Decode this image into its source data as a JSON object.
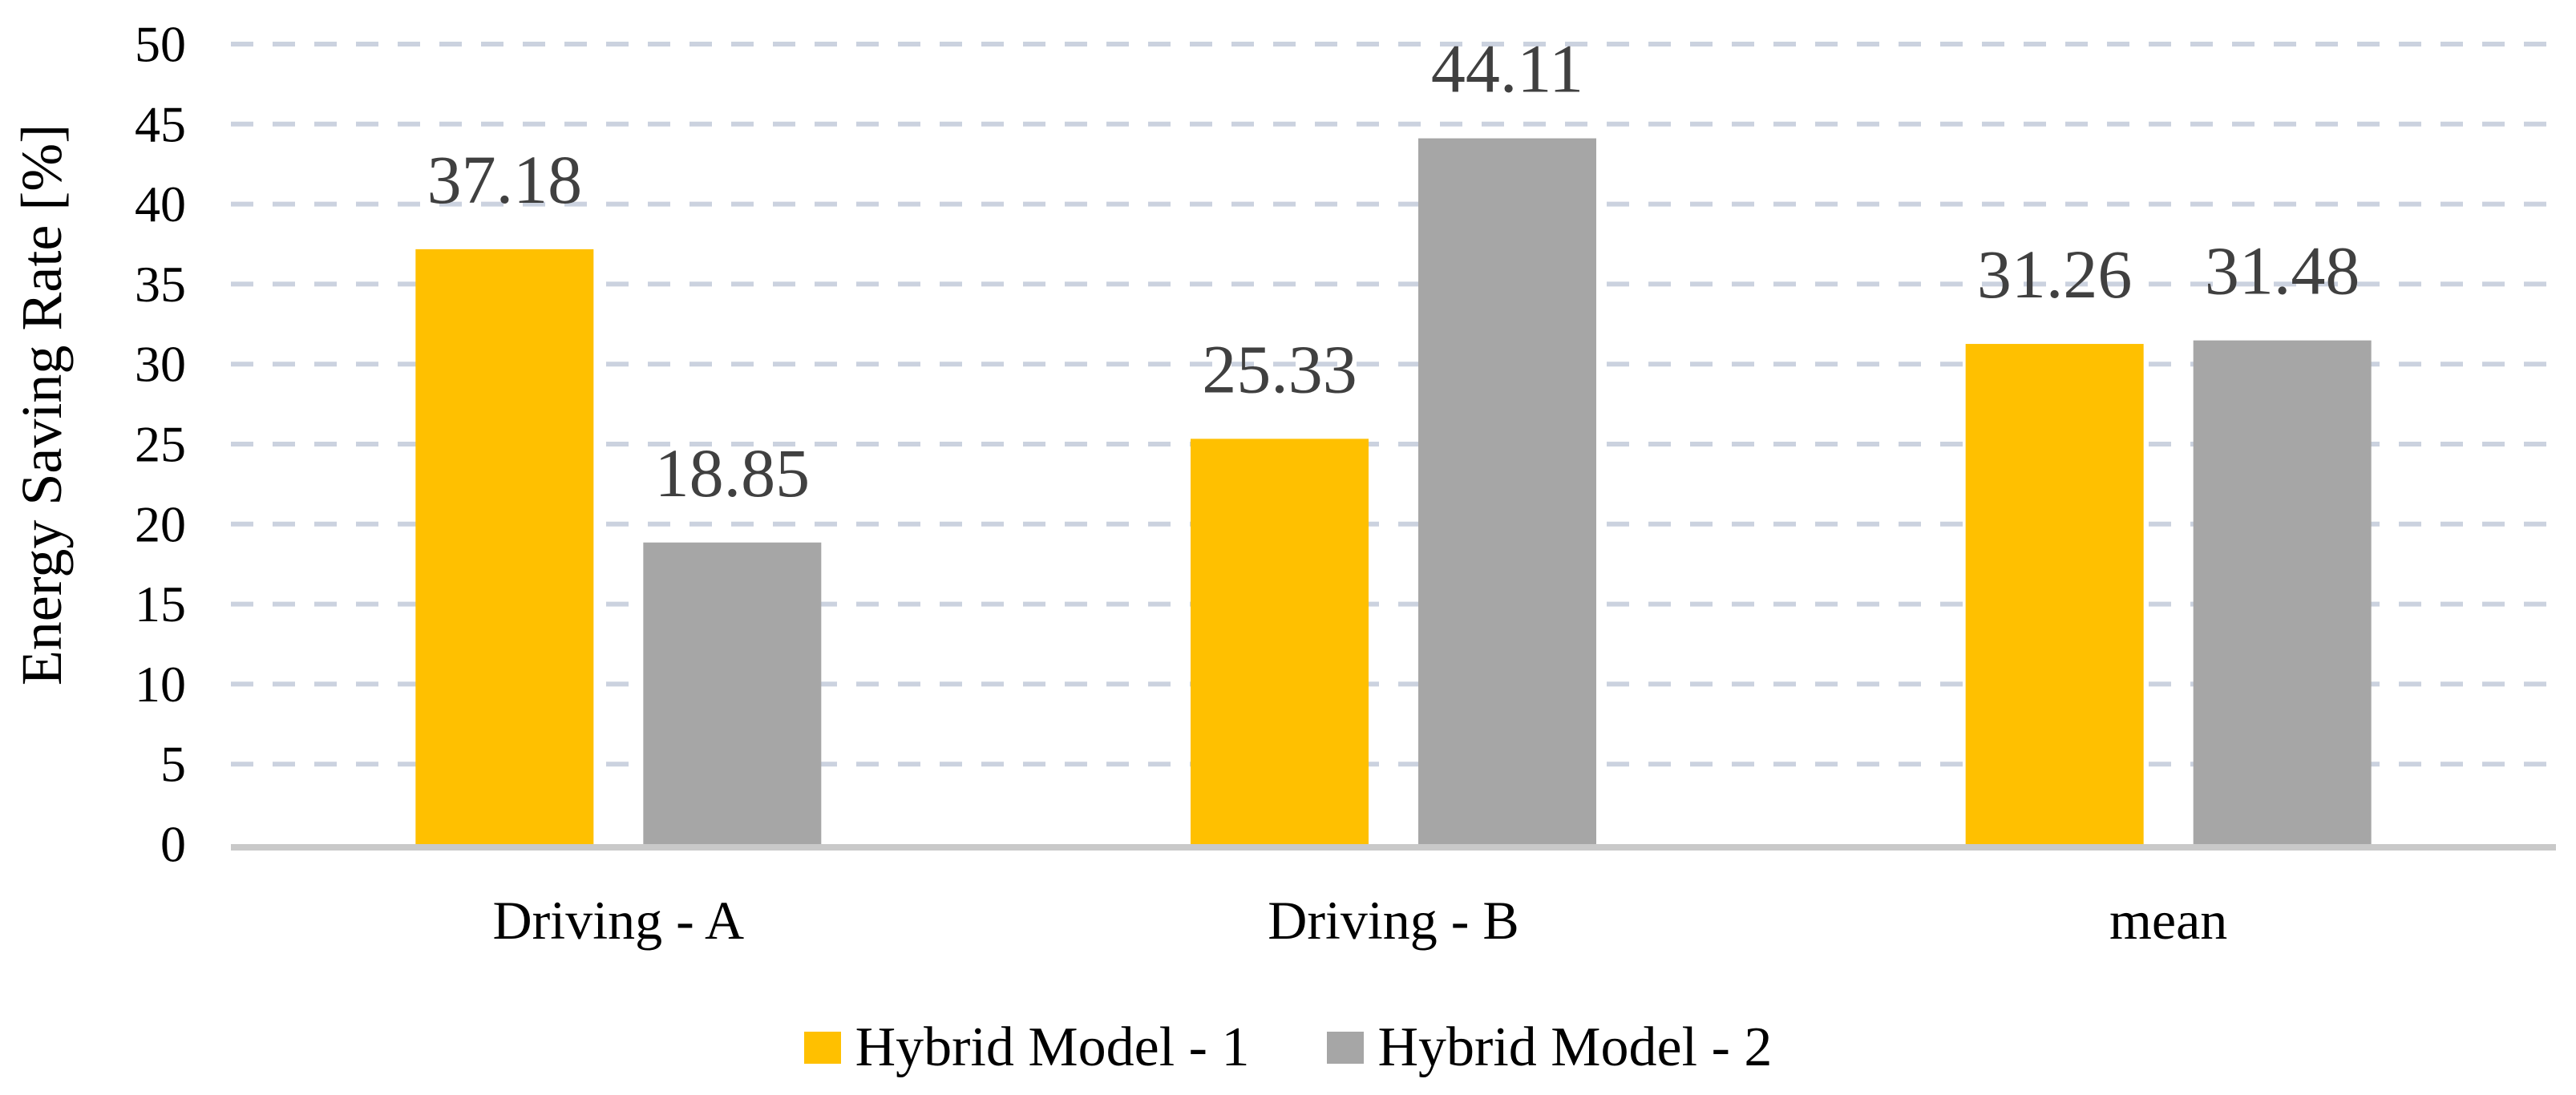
{
  "chart_data": {
    "type": "bar",
    "title": "",
    "categories": [
      "Driving - A",
      "Driving - B",
      "mean"
    ],
    "series": [
      {
        "name": "Hybrid Model - 1",
        "color": "#FFC000",
        "values": [
          37.18,
          25.33,
          31.26
        ],
        "labels": [
          "37.18",
          "25.33",
          "31.26"
        ]
      },
      {
        "name": "Hybrid Model - 2",
        "color": "#A6A6A6",
        "values": [
          18.85,
          44.11,
          31.48
        ],
        "labels": [
          "18.85",
          "44.11",
          "31.48"
        ]
      }
    ],
    "xlabel": "",
    "ylabel": "Energy Saving Rate [%]",
    "ylim": [
      0,
      50
    ],
    "ytick_step": 5,
    "yticks": [
      0,
      5,
      10,
      15,
      20,
      25,
      30,
      35,
      40,
      45,
      50
    ],
    "grid": "horizontal-dashed",
    "legend_position": "bottom-center",
    "style": {
      "background": "#FFFFFF",
      "gridline_color": "#CBD2DF",
      "axis_line_color": "#C9C9C9",
      "value_label_color": "#404040",
      "text_color": "#000000"
    }
  }
}
